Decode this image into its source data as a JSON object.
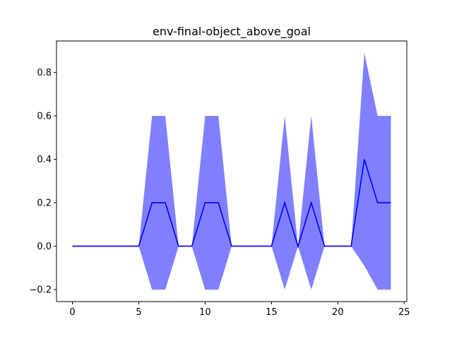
{
  "chart_data": {
    "type": "line",
    "title": "env-final-object_above_goal",
    "xlabel": "",
    "ylabel": "",
    "xlim": [
      -1.2,
      25.2
    ],
    "ylim": [
      -0.255,
      0.945
    ],
    "xticks": [
      0,
      5,
      10,
      15,
      20,
      25
    ],
    "xtick_labels": [
      "0",
      "5",
      "10",
      "15",
      "20",
      "25"
    ],
    "yticks": [
      -0.2,
      0.0,
      0.2,
      0.4,
      0.6,
      0.8
    ],
    "ytick_labels": [
      "−0.2",
      "0.0",
      "0.2",
      "0.4",
      "0.6",
      "0.8"
    ],
    "grid": false,
    "x": [
      0,
      1,
      2,
      3,
      4,
      5,
      6,
      7,
      8,
      9,
      10,
      11,
      12,
      13,
      14,
      15,
      16,
      17,
      18,
      19,
      20,
      21,
      22,
      23,
      24
    ],
    "series": [
      {
        "values": [
          0,
          0,
          0,
          0,
          0,
          0,
          0.2,
          0.2,
          0,
          0,
          0.2,
          0.2,
          0,
          0,
          0,
          0,
          0.2,
          0,
          0.2,
          0,
          0,
          0,
          0.4,
          0.2,
          0.2
        ],
        "lower": [
          0,
          0,
          0,
          0,
          0,
          0,
          -0.2,
          -0.2,
          0,
          0,
          -0.2,
          -0.2,
          0,
          0,
          0,
          0,
          -0.2,
          0,
          -0.2,
          0,
          0,
          0,
          -0.09,
          -0.2,
          -0.2
        ],
        "upper": [
          0,
          0,
          0,
          0,
          0,
          0,
          0.6,
          0.6,
          0,
          0,
          0.6,
          0.6,
          0,
          0,
          0,
          0,
          0.6,
          0,
          0.6,
          0,
          0,
          0,
          0.89,
          0.6,
          0.6
        ],
        "line_color": "#0000ff",
        "band_color": "#8080ff"
      }
    ]
  }
}
